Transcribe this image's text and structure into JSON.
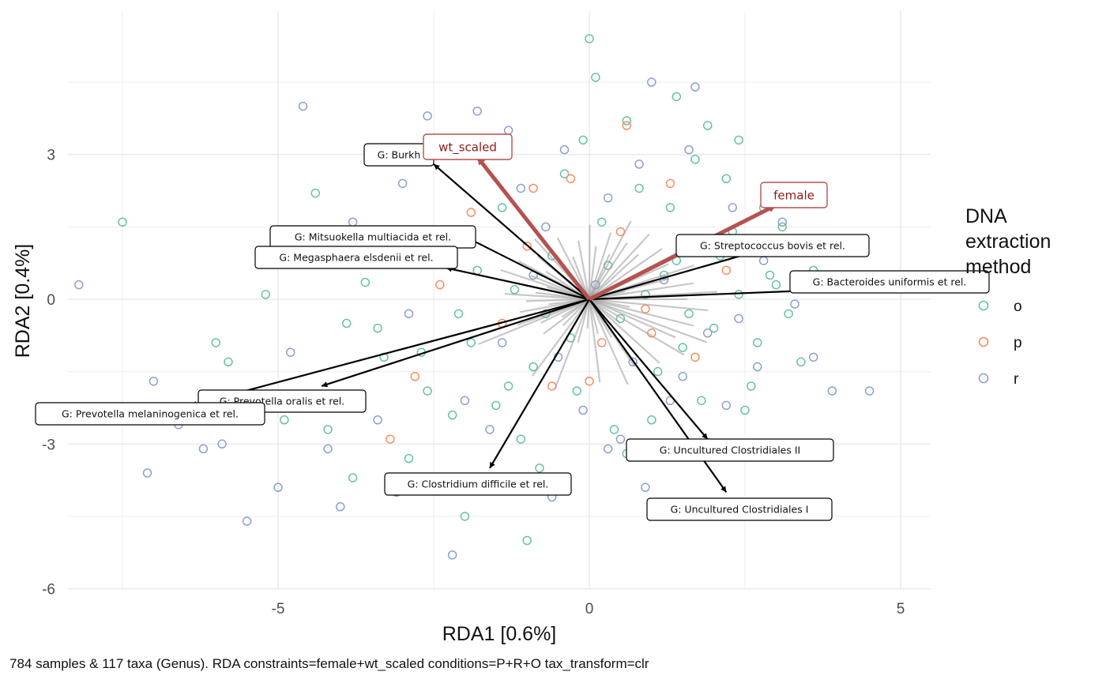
{
  "chart_data": {
    "type": "scatter",
    "subtype": "rda-biplot",
    "xlabel": "RDA1 [0.6%]",
    "ylabel": "RDA2 [0.4%]",
    "caption": "784 samples & 117 taxa (Genus). RDA constraints=female+wt_scaled conditions=P+R+O tax_transform=clr",
    "xlim": [
      -8.7,
      5.5
    ],
    "ylim": [
      -6.3,
      6.0
    ],
    "x_ticks": [
      -5,
      0,
      5
    ],
    "y_ticks": [
      -6,
      -3,
      0,
      3
    ],
    "grid": true,
    "legend": {
      "title": [
        "DNA",
        "extraction",
        "method"
      ],
      "position": "right",
      "entries": [
        {
          "label": "o",
          "color": "#66c2a5"
        },
        {
          "label": "p",
          "color": "#fc8d62"
        },
        {
          "label": "r",
          "color": "#8da0cb"
        }
      ]
    },
    "constraint_arrows": [
      {
        "label": "wt_scaled",
        "x": -1.8,
        "y": 2.95,
        "color": "#b5514f"
      },
      {
        "label": "female",
        "x": 3.0,
        "y": 1.95,
        "color": "#b5514f"
      }
    ],
    "taxa_arrows": [
      {
        "label": "G: Burkholderia et rel.",
        "label_shown": "G: Burkh",
        "x": -2.5,
        "y": 2.8
      },
      {
        "label": "G: Mitsuokella multiacida et rel.",
        "x": -2.0,
        "y": 1.3
      },
      {
        "label": "G: Megasphaera elsdenii et rel.",
        "x": -2.3,
        "y": 0.65
      },
      {
        "label": "G: Streptococcus bovis et rel.",
        "x": 2.7,
        "y": 1.0
      },
      {
        "label": "G: Bacteroides uniformis et rel.",
        "x": 3.9,
        "y": 0.2
      },
      {
        "label": "G: Prevotella oralis et rel.",
        "x": -4.3,
        "y": -1.8
      },
      {
        "label": "G: Prevotella melaninogenica et rel.",
        "x": -6.4,
        "y": -2.2
      },
      {
        "label": "G: Clostridium difficile et rel.",
        "x": -1.6,
        "y": -3.5
      },
      {
        "label": "G: Uncultured Clostridiales II",
        "x": 1.9,
        "y": -2.9
      },
      {
        "label": "G: Uncultured Clostridiales I",
        "x": 2.2,
        "y": -4.0
      }
    ],
    "samples": {
      "o": [
        [
          -3.6,
          0.35
        ],
        [
          -3.3,
          -1.2
        ],
        [
          -2.6,
          -1.9
        ],
        [
          -2.1,
          -0.3
        ],
        [
          -1.8,
          0.6
        ],
        [
          -1.5,
          -2.2
        ],
        [
          -1.2,
          0.2
        ],
        [
          -0.9,
          -1.4
        ],
        [
          -0.6,
          0.9
        ],
        [
          -0.3,
          -0.8
        ],
        [
          0.2,
          1.6
        ],
        [
          0.5,
          -0.4
        ],
        [
          0.8,
          2.3
        ],
        [
          1.1,
          -1.5
        ],
        [
          1.4,
          0.8
        ],
        [
          1.7,
          2.9
        ],
        [
          2.0,
          -0.6
        ],
        [
          2.3,
          1.4
        ],
        [
          2.6,
          -1.8
        ],
        [
          2.9,
          0.5
        ],
        [
          3.2,
          -0.3
        ],
        [
          3.5,
          1.1
        ],
        [
          -4.2,
          -2.7
        ],
        [
          -3.9,
          -0.5
        ],
        [
          -2.9,
          -3.3
        ],
        [
          -2.4,
          1.3
        ],
        [
          -1.7,
          -3.9
        ],
        [
          -1.1,
          -2.9
        ],
        [
          -0.4,
          2.6
        ],
        [
          0.1,
          4.6
        ],
        [
          0.6,
          3.7
        ],
        [
          1.0,
          -2.5
        ],
        [
          1.5,
          -1.0
        ],
        [
          1.9,
          3.6
        ],
        [
          2.4,
          0.1
        ],
        [
          2.8,
          1.9
        ],
        [
          -6.0,
          -0.9
        ],
        [
          -5.2,
          0.1
        ],
        [
          -4.5,
          1.2
        ],
        [
          -3.0,
          0.9
        ],
        [
          -2.2,
          -2.4
        ],
        [
          -1.4,
          1.9
        ],
        [
          -0.8,
          -3.5
        ],
        [
          -0.2,
          -1.9
        ],
        [
          0.3,
          0.7
        ],
        [
          0.9,
          0.1
        ],
        [
          1.3,
          1.9
        ],
        [
          1.8,
          -2.1
        ],
        [
          2.2,
          2.5
        ],
        [
          2.7,
          -0.9
        ],
        [
          3.1,
          1.5
        ],
        [
          3.4,
          -1.3
        ],
        [
          -7.5,
          1.6
        ],
        [
          -5.8,
          -1.3
        ],
        [
          -4.9,
          -2.5
        ],
        [
          -3.4,
          -0.6
        ],
        [
          -2.7,
          -1.1
        ],
        [
          -1.9,
          -0.9
        ],
        [
          -1.3,
          -1.8
        ],
        [
          -0.7,
          -0.3
        ],
        [
          -0.1,
          3.3
        ],
        [
          0.4,
          -2.7
        ],
        [
          1.2,
          0.5
        ],
        [
          1.6,
          -0.3
        ],
        [
          2.1,
          0.9
        ],
        [
          2.5,
          -2.3
        ],
        [
          3.0,
          0.3
        ],
        [
          3.6,
          0.6
        ],
        [
          -4.4,
          2.2
        ],
        [
          -3.8,
          -3.7
        ],
        [
          -2.0,
          -4.5
        ],
        [
          -1.0,
          -5.0
        ],
        [
          0.0,
          5.4
        ],
        [
          0.6,
          -3.2
        ],
        [
          1.4,
          4.2
        ],
        [
          2.4,
          3.3
        ]
      ],
      "p": [
        [
          -2.4,
          0.3
        ],
        [
          -1.9,
          1.8
        ],
        [
          -1.4,
          -0.5
        ],
        [
          -1.0,
          1.1
        ],
        [
          -0.6,
          -1.8
        ],
        [
          -0.3,
          2.5
        ],
        [
          0.2,
          -0.9
        ],
        [
          0.5,
          1.4
        ],
        [
          0.9,
          -0.2
        ],
        [
          1.3,
          2.4
        ],
        [
          1.7,
          -1.2
        ],
        [
          2.2,
          0.6
        ],
        [
          -3.2,
          -2.9
        ],
        [
          -2.8,
          -1.6
        ],
        [
          -0.9,
          2.3
        ],
        [
          0.0,
          -1.7
        ],
        [
          0.6,
          3.6
        ],
        [
          1.0,
          -0.7
        ]
      ],
      "r": [
        [
          -8.2,
          0.3
        ],
        [
          -7.0,
          -1.7
        ],
        [
          -6.2,
          -3.1
        ],
        [
          -5.0,
          -3.9
        ],
        [
          -4.6,
          4.0
        ],
        [
          -4.0,
          -4.3
        ],
        [
          -3.4,
          -2.5
        ],
        [
          -3.0,
          2.4
        ],
        [
          -2.6,
          3.8
        ],
        [
          -2.2,
          -5.3
        ],
        [
          -1.8,
          3.9
        ],
        [
          -1.4,
          -0.9
        ],
        [
          -1.1,
          2.3
        ],
        [
          -0.7,
          1.5
        ],
        [
          -0.4,
          3.1
        ],
        [
          -0.1,
          -2.3
        ],
        [
          0.3,
          2.1
        ],
        [
          0.7,
          -1.3
        ],
        [
          1.0,
          4.5
        ],
        [
          1.3,
          -2.1
        ],
        [
          1.6,
          3.1
        ],
        [
          1.9,
          -0.7
        ],
        [
          2.3,
          1.9
        ],
        [
          2.7,
          -1.4
        ],
        [
          3.1,
          1.6
        ],
        [
          3.6,
          -1.2
        ],
        [
          4.5,
          -1.9
        ],
        [
          -6.6,
          -2.6
        ],
        [
          -5.5,
          -4.6
        ],
        [
          -4.8,
          -1.1
        ],
        [
          -3.8,
          1.6
        ],
        [
          -2.9,
          -0.3
        ],
        [
          -2.3,
          0.9
        ],
        [
          -1.6,
          -2.7
        ],
        [
          -0.9,
          0.5
        ],
        [
          -0.5,
          -1.2
        ],
        [
          0.1,
          0.3
        ],
        [
          0.5,
          -2.9
        ],
        [
          0.8,
          2.8
        ],
        [
          1.2,
          0.4
        ],
        [
          1.5,
          -1.6
        ],
        [
          2.0,
          1.2
        ],
        [
          2.4,
          -0.4
        ],
        [
          2.8,
          0.8
        ],
        [
          3.3,
          -0.1
        ],
        [
          -7.1,
          -3.6
        ],
        [
          -5.9,
          -3.0
        ],
        [
          -4.2,
          -3.1
        ],
        [
          -3.1,
          -4.0
        ],
        [
          -2.0,
          -2.1
        ],
        [
          -1.3,
          3.5
        ],
        [
          -0.6,
          -4.1
        ],
        [
          0.3,
          -3.1
        ],
        [
          0.9,
          -3.9
        ],
        [
          1.7,
          4.4
        ],
        [
          2.2,
          -2.2
        ],
        [
          3.9,
          -1.9
        ]
      ]
    }
  }
}
